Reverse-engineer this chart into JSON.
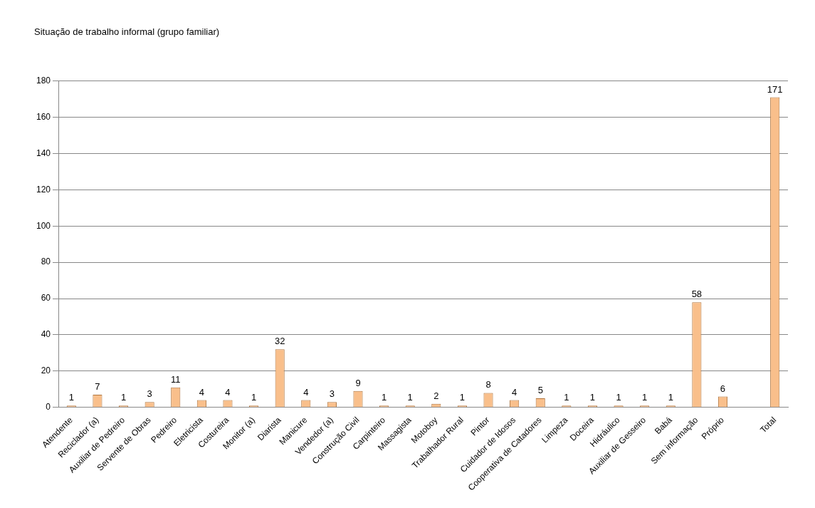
{
  "chart_data": {
    "type": "bar",
    "title": "Situação de trabalho informal (grupo familiar)",
    "categories": [
      "Atendente",
      "Reciclador (a)",
      "Auxiliar de Pedreiro",
      "Servente de Obras",
      "Pedreiro",
      "Eletricista",
      "Costureira",
      "Monitor (a)",
      "Diarista",
      "Manicure",
      "Vendedor (a)",
      "Construção Civil",
      "Carpinteiro",
      "Massagista",
      "Motoboy",
      "Trabalhador Rural",
      "Pintor",
      "Cuidador de Idosos",
      "Cooperativa de Catadores",
      "Limpeza",
      "Doceira",
      "Hidráulico",
      "Auxiliar de Gesseiro",
      "Babá",
      "Sem informação",
      "Próprio",
      null,
      "Total"
    ],
    "values": [
      1,
      7,
      1,
      3,
      11,
      4,
      4,
      1,
      32,
      4,
      3,
      9,
      1,
      1,
      2,
      1,
      8,
      4,
      5,
      1,
      1,
      1,
      1,
      1,
      58,
      6,
      null,
      171
    ],
    "color": "#f9bf8b",
    "ylim": [
      0,
      180
    ],
    "yticks": [
      0,
      20,
      40,
      60,
      80,
      100,
      120,
      140,
      160,
      180
    ],
    "grid": "y",
    "legend": false,
    "data_labels": true
  }
}
